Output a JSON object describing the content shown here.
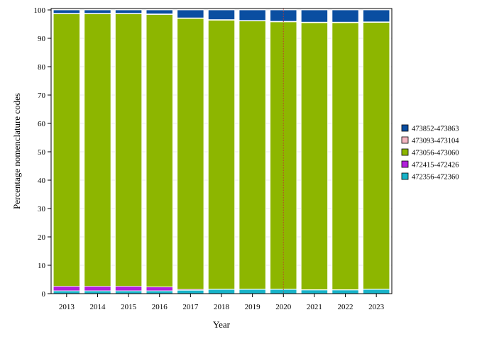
{
  "chart_data": {
    "type": "bar",
    "stacked": true,
    "xlabel": "Year",
    "ylabel": "Percentage nomenclature codes",
    "ylim": [
      0,
      100
    ],
    "yticks": [
      0,
      10,
      20,
      30,
      40,
      50,
      60,
      70,
      80,
      90,
      100
    ],
    "grid": true,
    "legend_position": "right",
    "reference_line": {
      "category": "2020",
      "color": "#c0392b",
      "style": "dotted"
    },
    "categories": [
      "2013",
      "2014",
      "2015",
      "2016",
      "2017",
      "2018",
      "2019",
      "2020",
      "2021",
      "2022",
      "2023"
    ],
    "series": [
      {
        "name": "472356-472360",
        "color": "#17b3c9",
        "values": [
          1.0,
          1.0,
          1.0,
          1.0,
          1.2,
          1.5,
          1.5,
          1.5,
          1.3,
          1.3,
          1.5
        ]
      },
      {
        "name": "472415-472426",
        "color": "#b21fdc",
        "values": [
          1.6,
          1.6,
          1.6,
          1.4,
          0.3,
          0.1,
          0.1,
          0.1,
          0.1,
          0.1,
          0.1
        ]
      },
      {
        "name": "473056-473060",
        "color": "#8db600",
        "values": [
          96.0,
          96.0,
          96.0,
          96.0,
          95.5,
          94.8,
          94.5,
          94.2,
          94.1,
          94.1,
          94.0
        ]
      },
      {
        "name": "473093-473104",
        "color": "#f4b6c2",
        "values": [
          0.2,
          0.2,
          0.2,
          0.2,
          0.2,
          0.2,
          0.2,
          0.2,
          0.2,
          0.2,
          0.2
        ]
      },
      {
        "name": "473852-473863",
        "color": "#0a4ea1",
        "values": [
          1.2,
          1.2,
          1.2,
          1.4,
          2.8,
          3.4,
          3.7,
          4.0,
          4.3,
          4.3,
          4.2
        ]
      }
    ]
  }
}
